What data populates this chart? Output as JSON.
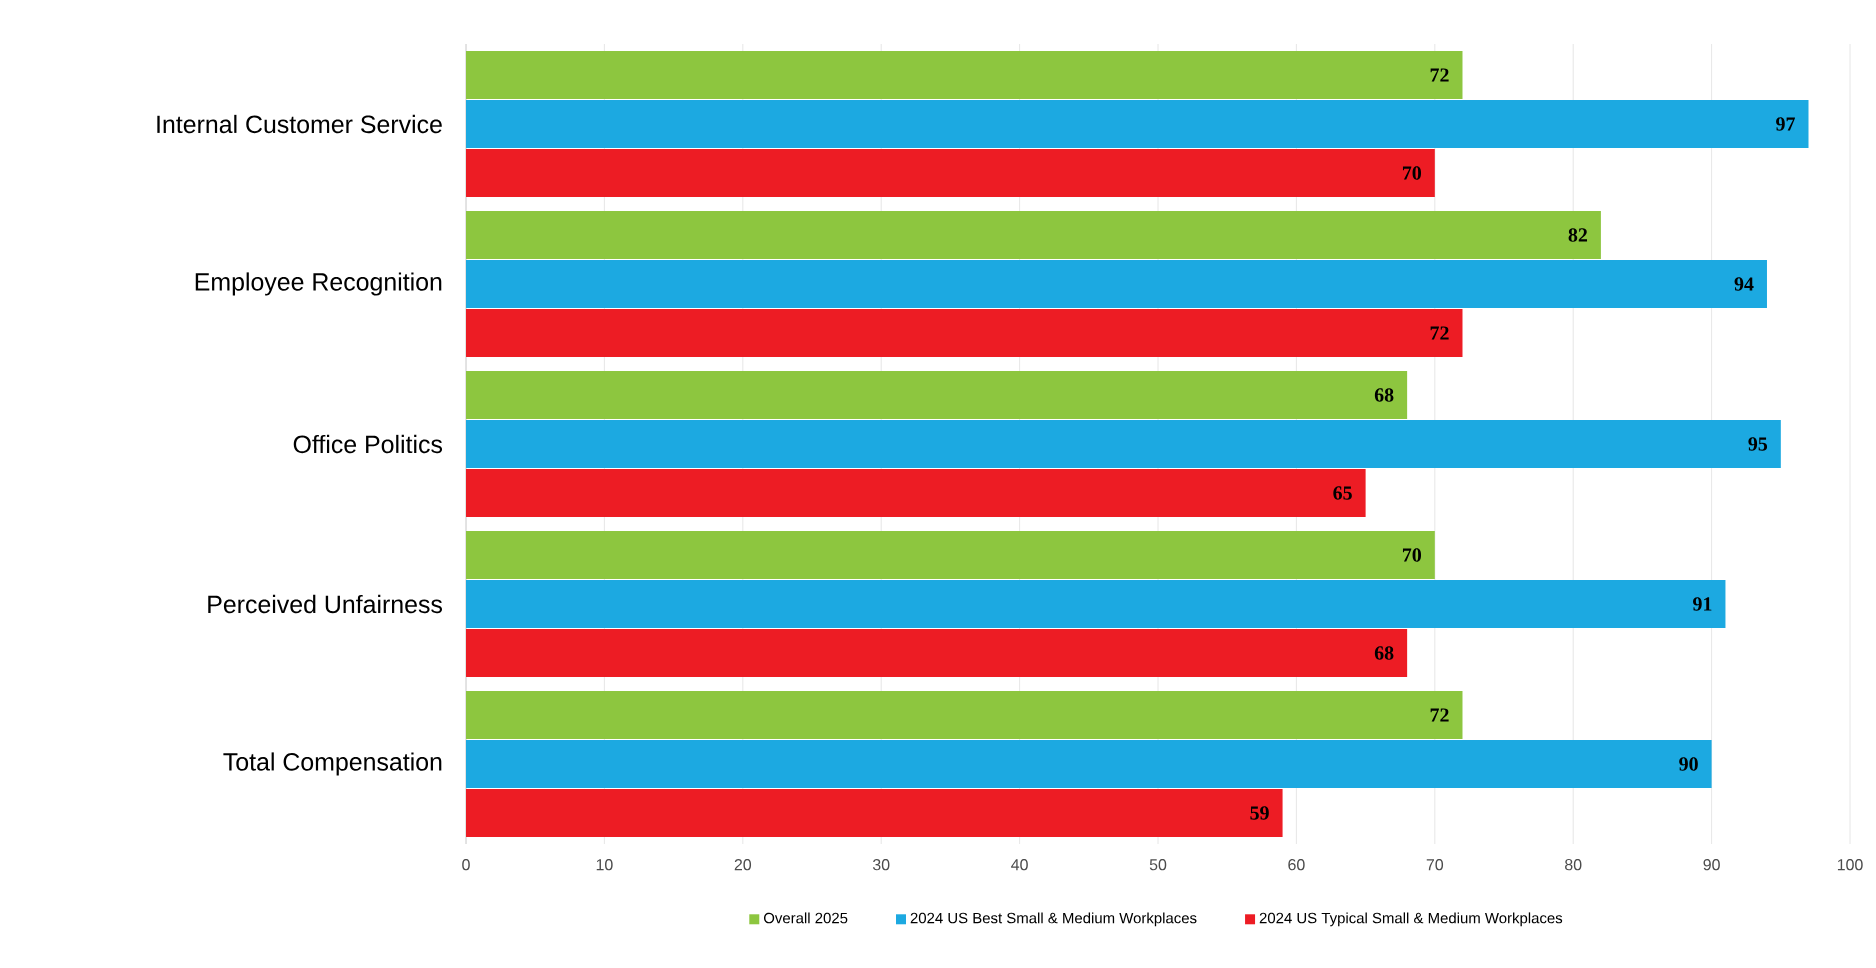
{
  "chart_data": {
    "type": "bar",
    "orientation": "horizontal",
    "categories": [
      "Internal Customer Service",
      "Employee Recognition",
      "Office Politics",
      "Perceived Unfairness",
      "Total Compensation"
    ],
    "series": [
      {
        "name": "Overall 2025",
        "color": "#8dc63f",
        "values": [
          72,
          82,
          68,
          70,
          72
        ]
      },
      {
        "name": "2024 US Best Small & Medium Workplaces",
        "color": "#1ca9e1",
        "values": [
          97,
          94,
          95,
          91,
          90
        ]
      },
      {
        "name": "2024 US Typical Small & Medium Workplaces",
        "color": "#ed1c24",
        "values": [
          70,
          72,
          65,
          68,
          59
        ]
      }
    ],
    "xlim": [
      0,
      100
    ],
    "xticks": [
      0,
      10,
      20,
      30,
      40,
      50,
      60,
      70,
      80,
      90,
      100
    ],
    "grid": "x",
    "legend": "bottom",
    "data_labels": true
  }
}
